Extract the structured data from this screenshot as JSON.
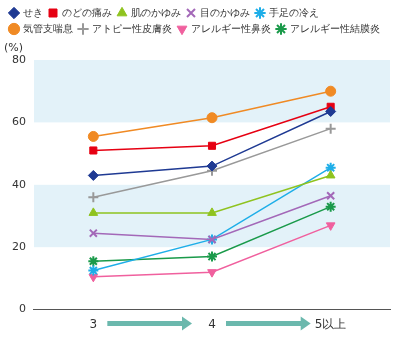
{
  "chart_data": {
    "type": "line",
    "ylabel": "(%)",
    "categories": [
      "3",
      "4",
      "5以上"
    ],
    "ylim": [
      0,
      80
    ],
    "yticks": [
      0,
      20,
      40,
      60,
      80
    ],
    "grid": false,
    "legend": "top",
    "series": [
      {
        "name": "せき",
        "color": "#1f3a93",
        "marker": "diamond",
        "values": [
          43,
          46,
          63.5
        ]
      },
      {
        "name": "のどの痛み",
        "color": "#e60012",
        "marker": "square",
        "values": [
          51,
          52.5,
          65
        ]
      },
      {
        "name": "肌のかゆみ",
        "color": "#8fc31f",
        "marker": "triangle",
        "values": [
          31,
          31,
          43
        ]
      },
      {
        "name": "目のかゆみ",
        "color": "#a368b8",
        "marker": "x",
        "values": [
          24.5,
          22.5,
          36.5
        ]
      },
      {
        "name": "手足の冷え",
        "color": "#1eaee8",
        "marker": "asterisk",
        "values": [
          12.5,
          22.5,
          45.5
        ]
      },
      {
        "name": "気管支喘息",
        "color": "#f08a24",
        "marker": "circle",
        "values": [
          55.5,
          61.5,
          70
        ]
      },
      {
        "name": "アトピー性皮膚炎",
        "color": "#999999",
        "marker": "plus",
        "values": [
          36,
          44.5,
          58
        ]
      },
      {
        "name": "アレルギー性鼻炎",
        "color": "#f0609e",
        "marker": "triangle_down",
        "values": [
          10.5,
          12,
          27
        ]
      },
      {
        "name": "アレルギー性結膜炎",
        "color": "#1a9a4a",
        "marker": "star",
        "values": [
          15.5,
          17,
          33
        ]
      }
    ]
  }
}
